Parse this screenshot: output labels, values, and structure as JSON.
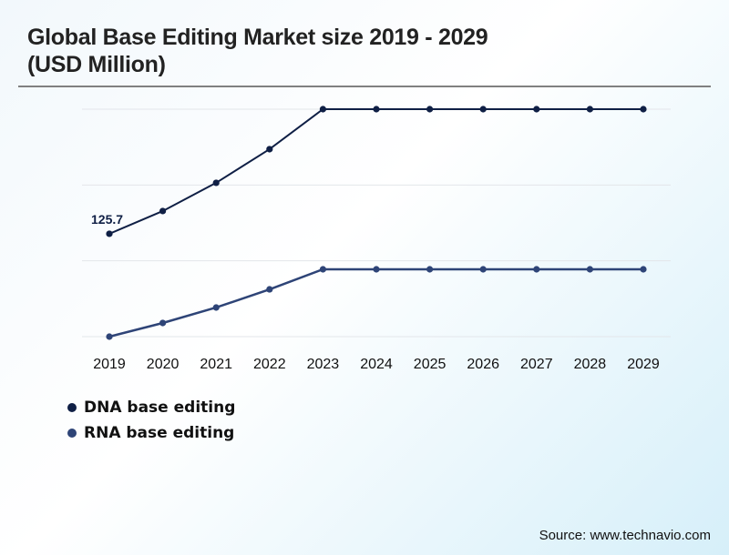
{
  "header": {
    "title_line1": "Global Base Editing Market size 2019 - 2029",
    "title_line2": "(USD Million)"
  },
  "source": "Source: www.technavio.com",
  "chart_data": {
    "type": "line",
    "title": "Global Base Editing Market size 2019 - 2029 (USD Million)",
    "xlabel": "",
    "ylabel": "",
    "x": [
      "2019",
      "2020",
      "2021",
      "2022",
      "2023",
      "2024",
      "2025",
      "2026",
      "2027",
      "2028",
      "2029"
    ],
    "ylim": [
      0,
      278
    ],
    "grid": true,
    "legend_position": "bottom-left",
    "series": [
      {
        "name": "DNA base editing",
        "color": "#0f1f45",
        "values": [
          125.7,
          153.5,
          188.0,
          229.1,
          278.0,
          278.0,
          278.0,
          278.0,
          278.0,
          278.0,
          278.0
        ]
      },
      {
        "name": "RNA base editing",
        "color": "#2e4477",
        "values": [
          0,
          16.7,
          35.6,
          57.8,
          82.3,
          82.3,
          82.3,
          82.3,
          82.3,
          82.3,
          82.3
        ]
      }
    ],
    "annotations": [
      {
        "series": "DNA base editing",
        "x": "2019",
        "text": "125.7"
      }
    ]
  }
}
